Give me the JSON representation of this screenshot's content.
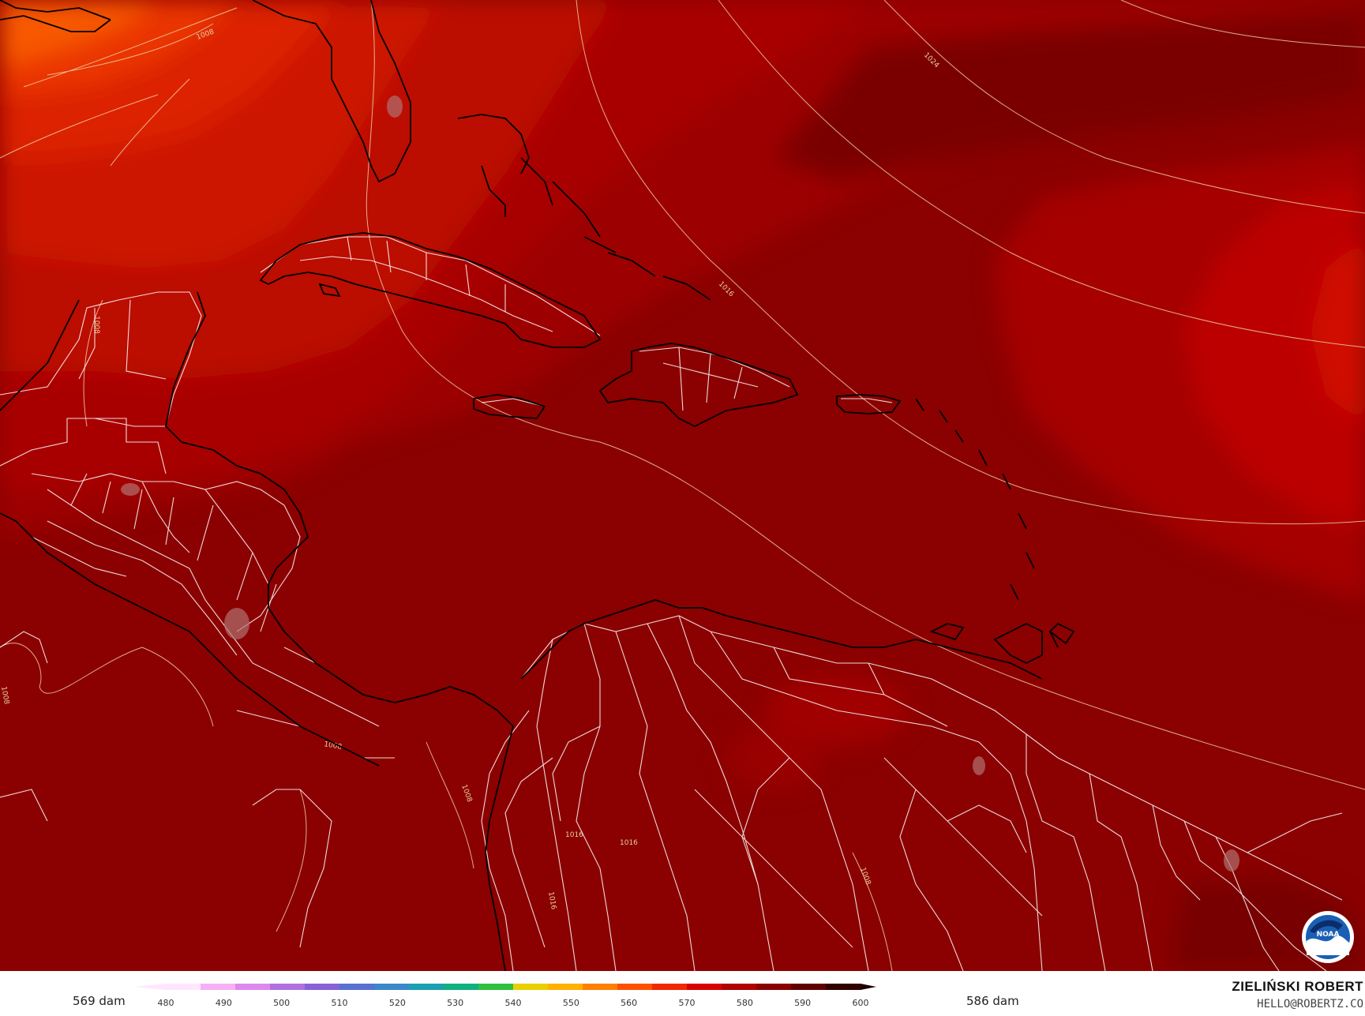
{
  "legend": {
    "min_label": "569 dam",
    "max_label": "586 dam",
    "ticks": [
      "480",
      "490",
      "500",
      "510",
      "520",
      "530",
      "540",
      "550",
      "560",
      "570",
      "580",
      "590",
      "600"
    ],
    "tick_values": [
      480,
      490,
      500,
      510,
      520,
      530,
      540,
      550,
      560,
      570,
      580,
      590,
      600
    ],
    "colors": [
      "#ffe6ff",
      "#f5b0f5",
      "#dd88ee",
      "#b070e0",
      "#8a60d8",
      "#5870d0",
      "#3a88c8",
      "#1aa0b0",
      "#10b080",
      "#30c040",
      "#e8d000",
      "#ffb000",
      "#ff8000",
      "#ff5000",
      "#f02800",
      "#d80000",
      "#b00000",
      "#8a0000",
      "#600000",
      "#300000"
    ]
  },
  "isobars": [
    "1008",
    "1024",
    "1016",
    "1008",
    "1008",
    "1008",
    "1016",
    "1016",
    "1016",
    "1008",
    "1008"
  ],
  "credit": {
    "name": "ZIELIŃSKI ROBERT",
    "email": "HELLO@ROBERTZ.CO"
  },
  "logo": {
    "icon": "noaa-logo-icon",
    "text": "NOAA"
  },
  "colors": {
    "ocean_dark": "#8b0000",
    "land_dark": "#8f0000",
    "heat_band_1": "#b00000",
    "heat_band_2": "#cc1400",
    "heat_band_3": "#e02800",
    "heat_band_4": "#f04000",
    "heat_band_5": "#ff6000",
    "coastline": "#000000",
    "border": "#ffffff"
  }
}
